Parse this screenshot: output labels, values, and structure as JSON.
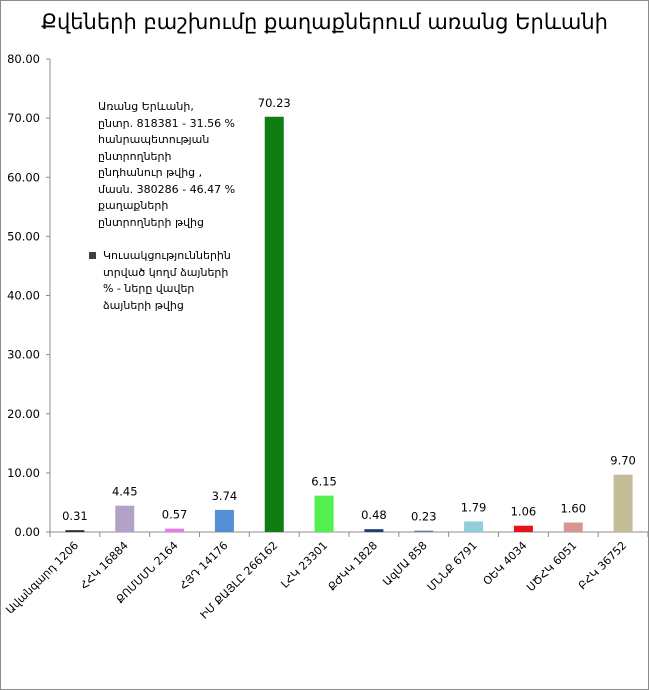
{
  "chart_data": {
    "type": "bar",
    "title": "Քվեների բաշխումը քաղաքներում առանց Երևանի",
    "categories": [
      "Ավանգարդ 1206",
      "ՀՀԿ 16884",
      "ՔՈՄՄՄՆ 2164",
      "ՀՅԴ 14176",
      "ԻՄ ՔԱՅԼԸ 266162",
      "ԼՀԿ 23301",
      "ՔԺԿԿ 1828",
      "ԱզՄԱ 858",
      "ՄՆՆՔ 6791",
      "ՕԵԿ 4034",
      "ՍԾՀԿ 6051",
      "ԲՀԿ 36752"
    ],
    "values": [
      0.31,
      4.45,
      0.57,
      3.74,
      70.23,
      6.15,
      0.48,
      0.23,
      1.79,
      1.06,
      1.6,
      9.7
    ],
    "value_labels": [
      "0.31",
      "4.45",
      "0.57",
      "3.74",
      "70.23",
      "6.15",
      "0.48",
      "0.23",
      "1.79",
      "1.06",
      "1.60",
      "9.70"
    ],
    "colors": [
      "#2e2e2e",
      "#b3a2c7",
      "#e27ee6",
      "#558ed5",
      "#0f7d0f",
      "#50f050",
      "#1f3d78",
      "#6c7ca5",
      "#92cddc",
      "#e8111a",
      "#d99594",
      "#c4bd97"
    ],
    "ylim": [
      0,
      80
    ],
    "yticks": [
      "0.00",
      "10.00",
      "20.00",
      "30.00",
      "40.00",
      "50.00",
      "60.00",
      "70.00",
      "80.00"
    ],
    "grid": false,
    "xlabel": "",
    "ylabel": ""
  },
  "note": {
    "lines": [
      "Առանց Երևանի,",
      "ընտր. 818381 - 31.56 %",
      "հանրապետության",
      "ընտրողների",
      "ընդհանուր թվից ,",
      "մասն. 380286 - 46.47 %",
      "քաղաքների",
      "ընտրողների թվից"
    ],
    "legend_lines": [
      "Կուսակցություններին",
      "տրված կողմ ձայների",
      "% - ները վավեր",
      "ձայների թվից"
    ],
    "legend_color": "#404040"
  }
}
